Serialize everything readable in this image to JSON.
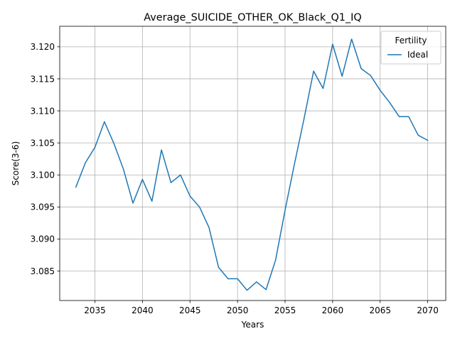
{
  "chart_data": {
    "type": "line",
    "title": "Average_SUICIDE_OTHER_OK_Black_Q1_IQ",
    "xlabel": "Years",
    "ylabel": "Score(3-6)",
    "xlim": [
      2031.3,
      2071.9
    ],
    "ylim": [
      3.0804,
      3.1232
    ],
    "xticks": [
      2035,
      2040,
      2045,
      2050,
      2055,
      2060,
      2065,
      2070
    ],
    "xtick_labels": [
      "2035",
      "2040",
      "2045",
      "2050",
      "2055",
      "2060",
      "2065",
      "2070"
    ],
    "yticks": [
      3.085,
      3.09,
      3.095,
      3.1,
      3.105,
      3.11,
      3.115,
      3.12
    ],
    "ytick_labels": [
      "3.085",
      "3.090",
      "3.095",
      "3.100",
      "3.105",
      "3.110",
      "3.115",
      "3.120"
    ],
    "grid": true,
    "legend": {
      "title": "Fertility",
      "placement": "top-right"
    },
    "series": [
      {
        "name": "Ideal",
        "color": "#1f77b4",
        "x": [
          2033,
          2034,
          2035,
          2036,
          2037,
          2038,
          2039,
          2040,
          2041,
          2042,
          2043,
          2044,
          2045,
          2046,
          2047,
          2048,
          2049,
          2050,
          2051,
          2052,
          2053,
          2054,
          2055,
          2056,
          2057,
          2058,
          2059,
          2060,
          2061,
          2062,
          2063,
          2064,
          2065,
          2066,
          2067,
          2068,
          2069,
          2070
        ],
        "y": [
          3.0981,
          3.1019,
          3.1043,
          3.1083,
          3.1049,
          3.1009,
          3.0956,
          3.0993,
          3.0959,
          3.1039,
          3.0988,
          3.1,
          3.0967,
          3.095,
          3.0918,
          3.0856,
          3.0838,
          3.0838,
          3.082,
          3.0833,
          3.0821,
          3.0867,
          3.0945,
          3.1018,
          3.1088,
          3.1162,
          3.1135,
          3.1204,
          3.1154,
          3.1212,
          3.1166,
          3.1155,
          3.1132,
          3.1113,
          3.1091,
          3.1091,
          3.1062,
          3.1054
        ]
      }
    ]
  }
}
